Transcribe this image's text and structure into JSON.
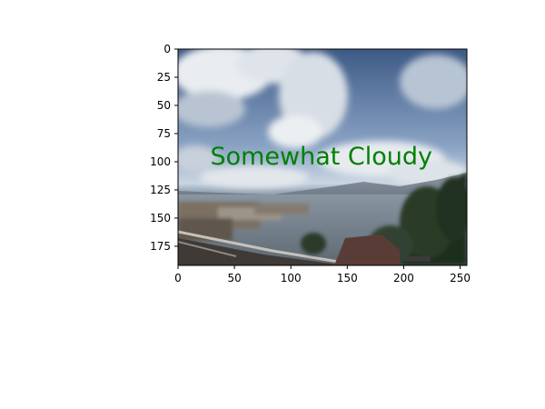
{
  "chart_data": {
    "type": "image",
    "xlim": [
      0,
      256
    ],
    "ylim": [
      192,
      0
    ],
    "xticks": [
      {
        "value": 0,
        "label": "0"
      },
      {
        "value": 50,
        "label": "50"
      },
      {
        "value": 100,
        "label": "100"
      },
      {
        "value": 150,
        "label": "150"
      },
      {
        "value": 200,
        "label": "200"
      },
      {
        "value": 250,
        "label": "250"
      }
    ],
    "yticks": [
      {
        "value": 0,
        "label": "0"
      },
      {
        "value": 25,
        "label": "25"
      },
      {
        "value": 50,
        "label": "50"
      },
      {
        "value": 75,
        "label": "75"
      },
      {
        "value": 100,
        "label": "100"
      },
      {
        "value": 125,
        "label": "125"
      },
      {
        "value": 150,
        "label": "150"
      },
      {
        "value": 175,
        "label": "175"
      }
    ],
    "annotation": {
      "text": "Somewhat Cloudy",
      "x": 127,
      "y": 95,
      "color": "#008000"
    },
    "grid": false,
    "image_content": "webcam photo of cloudy sky over harbor, bridge and trees"
  }
}
